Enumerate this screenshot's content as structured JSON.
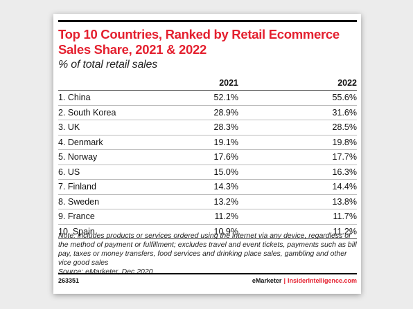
{
  "chart_data": {
    "type": "table",
    "title": "Top 10 Countries, Ranked by Retail Ecommerce Sales Share, 2021 & 2022",
    "subtitle": "% of total retail sales",
    "columns": [
      "",
      "2021",
      "2022"
    ],
    "rows": [
      {
        "country": "1. China",
        "y2021": "52.1%",
        "y2022": "55.6%"
      },
      {
        "country": "2. South Korea",
        "y2021": "28.9%",
        "y2022": "31.6%"
      },
      {
        "country": "3. UK",
        "y2021": "28.3%",
        "y2022": "28.5%"
      },
      {
        "country": "4. Denmark",
        "y2021": "19.1%",
        "y2022": "19.8%"
      },
      {
        "country": "5. Norway",
        "y2021": "17.6%",
        "y2022": "17.7%"
      },
      {
        "country": "6. US",
        "y2021": "15.0%",
        "y2022": "16.3%"
      },
      {
        "country": "7. Finland",
        "y2021": "14.3%",
        "y2022": "14.4%"
      },
      {
        "country": "8. Sweden",
        "y2021": "13.2%",
        "y2022": "13.8%"
      },
      {
        "country": "9. France",
        "y2021": "11.2%",
        "y2022": "11.7%"
      },
      {
        "country": "10. Spain",
        "y2021": "10.9%",
        "y2022": "11.2%"
      }
    ]
  },
  "note": "Note: includes products or services ordered using the internet via any device, regardless of the method of payment or fulfillment; excludes travel and event tickets, payments such as bill pay, taxes or money transfers, food services and drinking place sales, gambling and other vice good sales",
  "source": "Source: eMarketer, Dec 2020",
  "footer": {
    "id": "263351",
    "brand_left": "eMarketer",
    "separator": "|",
    "brand_right": "InsiderIntelligence.com"
  },
  "colors": {
    "title": "#e4202f",
    "accent": "#e4202f",
    "text": "#111111"
  }
}
